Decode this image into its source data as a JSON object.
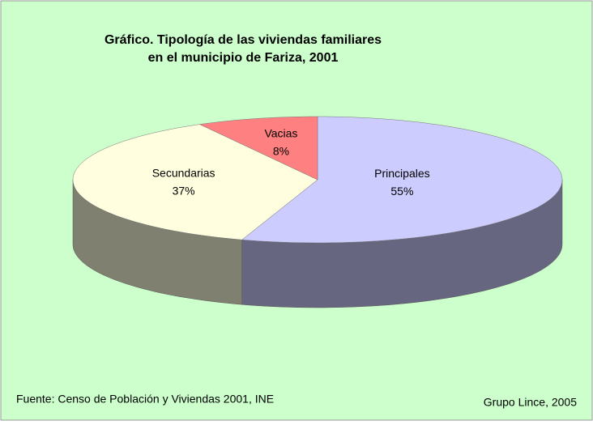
{
  "chart_data": {
    "type": "pie3d",
    "title": [
      "Gráfico. Tipología de las viviendas familiares",
      "en el municipio de Fariza, 2001"
    ],
    "categories": [
      "Principales",
      "Secundarias",
      "Vacias"
    ],
    "values": [
      55,
      37,
      8
    ],
    "value_labels": [
      "55%",
      "37%",
      "8%"
    ],
    "colors": [
      "#ccccff",
      "#ffffe0",
      "#ff8080"
    ],
    "source": "Fuente: Censo de Población y Viviendas 2001, INE",
    "credit": "Grupo Lince, 2005"
  }
}
